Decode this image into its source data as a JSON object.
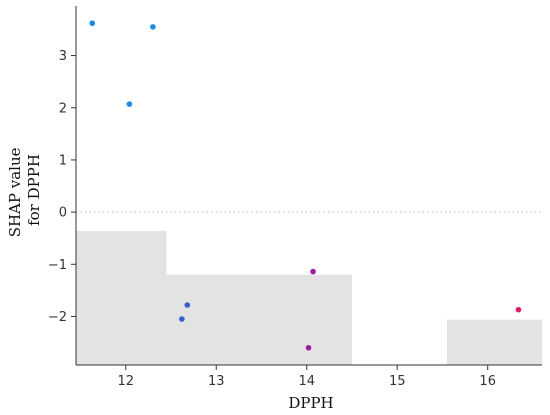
{
  "chart_data": {
    "type": "scatter",
    "xlabel": "DPPH",
    "ylabel_lines": [
      "SHAP value",
      "for DPPH"
    ],
    "xlim": [
      11.45,
      16.6
    ],
    "ylim": [
      -2.93,
      3.95
    ],
    "xticks": [
      12,
      13,
      14,
      15,
      16
    ],
    "yticks": [
      -2,
      -1,
      0,
      1,
      2,
      3
    ],
    "zero_reference_line": true,
    "background_histogram": {
      "color": "#e3e3e3",
      "bins": [
        {
          "x0": 11.45,
          "x1": 12.45,
          "top": -0.36
        },
        {
          "x0": 12.45,
          "x1": 14.5,
          "top": -1.2
        },
        {
          "x0": 14.5,
          "x1": 15.55,
          "top": -2.93
        },
        {
          "x0": 15.55,
          "x1": 16.6,
          "top": -2.06
        }
      ]
    },
    "points": [
      {
        "x": 11.63,
        "y": 3.62,
        "color": "#1e88e5"
      },
      {
        "x": 12.3,
        "y": 3.55,
        "color": "#1e88e5"
      },
      {
        "x": 12.04,
        "y": 2.07,
        "color": "#1e88e5"
      },
      {
        "x": 12.68,
        "y": -1.78,
        "color": "#3a5fcd"
      },
      {
        "x": 12.62,
        "y": -2.05,
        "color": "#3a5fcd"
      },
      {
        "x": 14.07,
        "y": -1.14,
        "color": "#9c1aa8"
      },
      {
        "x": 14.02,
        "y": -2.6,
        "color": "#9c1aa8"
      },
      {
        "x": 16.34,
        "y": -1.87,
        "color": "#e0186d"
      }
    ]
  }
}
